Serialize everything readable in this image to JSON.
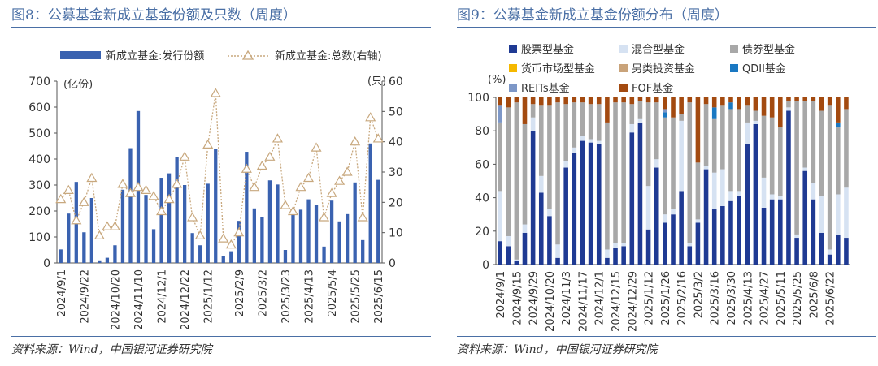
{
  "left": {
    "title": "图8：公募基金新成立基金份额及只数（周度）",
    "source": "资料来源：Wind，中国银河证券研究院",
    "chart_data": {
      "type": "bar",
      "legend_bar": "新成立基金:发行份额",
      "legend_line": "新成立基金:总数(右轴)",
      "left_unit": "(亿份)",
      "right_unit": "(只)",
      "ylim_left": [
        0,
        700
      ],
      "ylim_right": [
        0,
        60
      ],
      "yticks_left": [
        "0",
        "100",
        "200",
        "300",
        "400",
        "500",
        "600",
        "700"
      ],
      "yticks_right": [
        "0",
        "10",
        "20",
        "30",
        "40",
        "50",
        "60"
      ],
      "x_labels": [
        "2024/9/1",
        "2024/9/22",
        "2024/10/20",
        "2024/11/10",
        "2024/12/1",
        "2024/12/22",
        "2025/1/12",
        "2025/2/9",
        "2025/3/2",
        "2025/3/23",
        "2025/4/13",
        "2025/5/4",
        "2025/5/25",
        "2025/6/15"
      ],
      "x_label_index": [
        0,
        3,
        7,
        10,
        13,
        16,
        19,
        23,
        26,
        29,
        32,
        35,
        38,
        41
      ],
      "bars": [
        52,
        190,
        312,
        118,
        250,
        10,
        20,
        68,
        282,
        442,
        585,
        262,
        130,
        328,
        345,
        408,
        300,
        115,
        68,
        305,
        438,
        25,
        45,
        162,
        428,
        210,
        178,
        318,
        302,
        50,
        208,
        205,
        245,
        222,
        63,
        240,
        160,
        188,
        310,
        88,
        460,
        320
      ],
      "line": [
        21,
        24,
        14,
        20,
        28,
        9,
        12,
        12,
        26,
        23,
        25,
        24,
        22,
        17,
        21,
        26,
        35,
        15,
        9,
        39,
        56,
        8,
        6,
        10,
        31,
        25,
        32,
        35,
        41,
        19,
        17,
        25,
        28,
        38,
        15,
        23,
        27,
        30,
        40,
        15,
        48,
        41
      ],
      "colors": {
        "bar": "#3a62b0",
        "line": "#c8a87e"
      }
    }
  },
  "right": {
    "title": "图9：公募基金新成立基金份额分布（周度）",
    "source": "资料来源：Wind，中国银河证券研究院",
    "chart_data": {
      "type": "bar",
      "stacked": true,
      "y_unit": "(%)",
      "ylim": [
        0,
        100
      ],
      "yticks": [
        "0",
        "20",
        "40",
        "60",
        "80",
        "100"
      ],
      "x_labels": [
        "2024/9/1",
        "2024/9/15",
        "2024/9/29",
        "2024/10/20",
        "2024/11/3",
        "2024/11/17",
        "2024/12/1",
        "2024/12/15",
        "2024/12/29",
        "2025/1/12",
        "2025/1/26",
        "2025/2/16",
        "2025/3/2",
        "2025/3/16",
        "2025/3/30",
        "2025/4/13",
        "2025/4/27",
        "2025/5/11",
        "2025/5/25",
        "2025/6/8",
        "2025/6/22"
      ],
      "x_label_index": [
        0,
        2,
        4,
        6,
        8,
        10,
        12,
        14,
        16,
        18,
        20,
        22,
        24,
        26,
        28,
        30,
        32,
        34,
        36,
        38,
        40
      ],
      "series": [
        {
          "name": "股票型基金",
          "color": "#1f3a93",
          "values": [
            14,
            11,
            2,
            19,
            80,
            43,
            29,
            4,
            58,
            67,
            74,
            73,
            72,
            4,
            10,
            11,
            79,
            85,
            21,
            58,
            25,
            30,
            44,
            11,
            25,
            57,
            33,
            35,
            38,
            41,
            72,
            84,
            34,
            39,
            39,
            92,
            16,
            56,
            39,
            19,
            6,
            18,
            16
          ]
        },
        {
          "name": "混合型基金",
          "color": "#d6e2f2",
          "values": [
            30,
            6,
            1,
            5,
            8,
            10,
            4,
            8,
            4,
            3,
            3,
            2,
            2,
            5,
            3,
            2,
            5,
            2,
            26,
            5,
            5,
            3,
            42,
            2,
            2,
            2,
            22,
            22,
            6,
            3,
            13,
            2,
            18,
            3,
            2,
            2,
            2,
            2,
            10,
            22,
            3,
            24,
            30
          ]
        },
        {
          "name": "债券型基金",
          "color": "#a8a8a8",
          "values": [
            41,
            77,
            94,
            60,
            8,
            42,
            62,
            85,
            34,
            27,
            20,
            21,
            22,
            76,
            84,
            84,
            12,
            11,
            50,
            34,
            58,
            55,
            4,
            84,
            34,
            37,
            32,
            38,
            49,
            49,
            10,
            6,
            37,
            46,
            41,
            4,
            80,
            40,
            49,
            51,
            86,
            40,
            47
          ]
        },
        {
          "name": "货币市场型基金",
          "color": "#f5b800",
          "values": [
            0,
            0,
            0,
            0,
            0,
            0,
            0,
            0,
            0,
            0,
            0,
            0,
            0,
            0,
            0,
            0,
            0,
            0,
            0,
            0,
            0,
            0,
            0,
            0,
            0,
            0,
            0,
            0,
            0,
            0,
            0,
            0,
            0,
            0,
            0,
            0,
            0,
            0,
            0,
            0,
            0,
            0,
            0
          ]
        },
        {
          "name": "另类投资基金",
          "color": "#c9a37a",
          "values": [
            0,
            0,
            0,
            0,
            0,
            0,
            0,
            0,
            0,
            0,
            0,
            0,
            0,
            0,
            0,
            0,
            0,
            0,
            0,
            0,
            0,
            0,
            0,
            0,
            0,
            0,
            0,
            0,
            0,
            0,
            0,
            0,
            0,
            0,
            0,
            0,
            0,
            0,
            0,
            0,
            0,
            0,
            0
          ]
        },
        {
          "name": "QDII基金",
          "color": "#1a78c2",
          "values": [
            0,
            0,
            0,
            0,
            0,
            0,
            0,
            0,
            0,
            0,
            0,
            0,
            0,
            0,
            0,
            0,
            0,
            0,
            0,
            0,
            3,
            0,
            0,
            0,
            0,
            0,
            7,
            0,
            4,
            0,
            0,
            0,
            0,
            0,
            0,
            0,
            0,
            0,
            0,
            0,
            0,
            3,
            0
          ]
        },
        {
          "name": "REITs基金",
          "color": "#7d97c7",
          "values": [
            10,
            0,
            0,
            0,
            0,
            0,
            0,
            0,
            0,
            0,
            0,
            0,
            0,
            0,
            0,
            0,
            0,
            0,
            0,
            0,
            2,
            0,
            0,
            0,
            0,
            0,
            0,
            0,
            0,
            0,
            0,
            0,
            0,
            0,
            0,
            0,
            0,
            0,
            0,
            0,
            0,
            0,
            0
          ]
        },
        {
          "name": "FOF基金",
          "color": "#a34a10",
          "values": [
            5,
            6,
            3,
            16,
            4,
            5,
            5,
            3,
            4,
            3,
            3,
            4,
            4,
            15,
            3,
            3,
            4,
            2,
            3,
            3,
            7,
            12,
            10,
            3,
            39,
            4,
            6,
            5,
            3,
            7,
            5,
            8,
            11,
            12,
            18,
            2,
            2,
            2,
            2,
            8,
            5,
            15,
            7
          ]
        }
      ]
    }
  }
}
